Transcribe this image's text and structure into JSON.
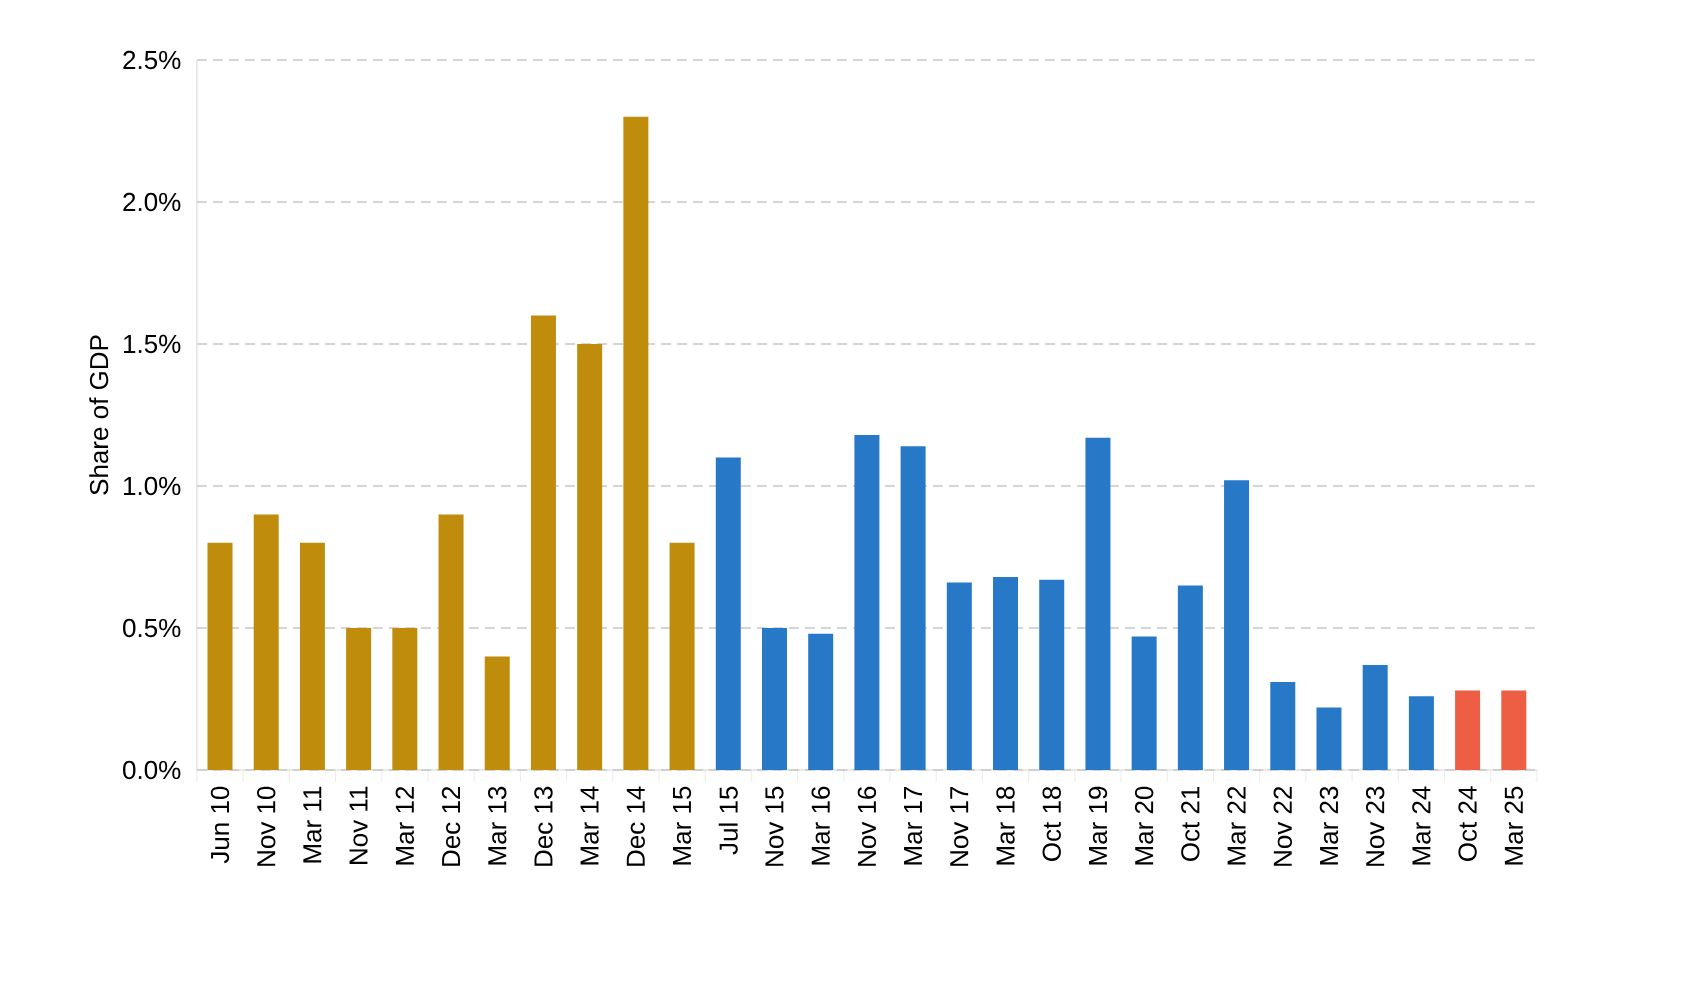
{
  "chart_data": {
    "type": "bar",
    "ylabel": "Share of GDP",
    "categories": [
      "Jun 10",
      "Nov 10",
      "Mar 11",
      "Nov 11",
      "Mar 12",
      "Dec 12",
      "Mar 13",
      "Dec 13",
      "Mar 14",
      "Dec 14",
      "Mar 15",
      "Jul 15",
      "Nov 15",
      "Mar 16",
      "Nov 16",
      "Mar 17",
      "Nov 17",
      "Mar 18",
      "Oct 18",
      "Mar 19",
      "Mar 20",
      "Oct 21",
      "Mar 22",
      "Nov 22",
      "Mar 23",
      "Nov 23",
      "Mar 24",
      "Oct 24",
      "Mar 25"
    ],
    "values": [
      0.8,
      0.9,
      0.8,
      0.5,
      0.5,
      0.9,
      0.4,
      1.6,
      1.5,
      2.3,
      0.8,
      1.1,
      0.5,
      0.48,
      1.18,
      1.14,
      0.66,
      0.68,
      0.67,
      1.17,
      0.47,
      0.65,
      1.02,
      0.31,
      0.22,
      0.37,
      0.26,
      0.28,
      0.28
    ],
    "colors": [
      "#bf8c0c",
      "#bf8c0c",
      "#bf8c0c",
      "#bf8c0c",
      "#bf8c0c",
      "#bf8c0c",
      "#bf8c0c",
      "#bf8c0c",
      "#bf8c0c",
      "#bf8c0c",
      "#bf8c0c",
      "#2878c8",
      "#2878c8",
      "#2878c8",
      "#2878c8",
      "#2878c8",
      "#2878c8",
      "#2878c8",
      "#2878c8",
      "#2878c8",
      "#2878c8",
      "#2878c8",
      "#2878c8",
      "#2878c8",
      "#2878c8",
      "#2878c8",
      "#2878c8",
      "#ee5e44",
      "#ee5e44"
    ],
    "ylim": [
      0,
      2.5
    ],
    "yticks": [
      {
        "value": 0,
        "label": "0.0%"
      },
      {
        "value": 0.5,
        "label": "0.5%"
      },
      {
        "value": 1,
        "label": "1.0%"
      },
      {
        "value": 1.5,
        "label": "1.5%"
      },
      {
        "value": 2,
        "label": "2.0%"
      },
      {
        "value": 2.5,
        "label": "2.5%"
      }
    ],
    "grid": "y"
  }
}
